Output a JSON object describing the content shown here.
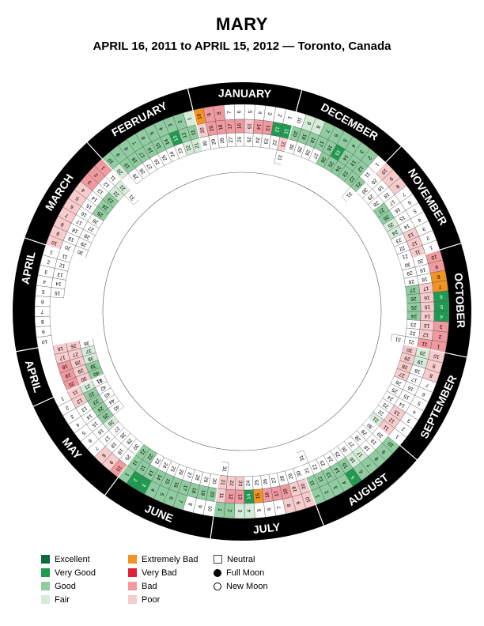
{
  "header": {
    "title": "MARY",
    "subtitle": "APRIL 16, 2011  to  APRIL 15, 2012 — Toronto, Canada"
  },
  "colors": {
    "excellent": "#0b6b3a",
    "very_good": "#1f9a50",
    "good": "#8fcc9f",
    "fair": "#d5ecd9",
    "extremely_bad": "#f39322",
    "very_bad": "#e0213a",
    "bad": "#f09aa0",
    "poor": "#f8cbcd",
    "neutral": "#ffffff",
    "ring": "#000000"
  },
  "legend": {
    "col1": [
      {
        "key": "excellent",
        "label": "Excellent"
      },
      {
        "key": "very_good",
        "label": "Very Good"
      },
      {
        "key": "good",
        "label": "Good"
      },
      {
        "key": "fair",
        "label": "Fair"
      }
    ],
    "col2": [
      {
        "key": "extremely_bad",
        "label": "Extremely Bad"
      },
      {
        "key": "very_bad",
        "label": "Very Bad"
      },
      {
        "key": "bad",
        "label": "Bad"
      },
      {
        "key": "poor",
        "label": "Poor"
      }
    ],
    "col3": [
      {
        "key": "neutral",
        "label": "Neutral"
      },
      {
        "key": "full",
        "label": "Full Moon"
      },
      {
        "key": "new",
        "label": "New Moon"
      }
    ]
  },
  "months": [
    {
      "name": "APRIL",
      "days": 30,
      "start_day": 16,
      "ratings": "PPBBBVVOBBPPPPPNNNNNNFFGGNNNNN"
    },
    {
      "name": "MAY",
      "days": 31,
      "start_day": 1,
      "ratings": "NNNNNNNPPBPPNNNNNNNNFGGGGFNNNNN"
    },
    {
      "name": "JUNE",
      "days": 30,
      "start_day": 1,
      "ratings": "GVVGGGGNNNGGGGGGGGGGGGNNNNNNNN"
    },
    {
      "name": "JULY",
      "days": 31,
      "start_day": 1,
      "ratings": "GGFFNNNPPPPBBVOBBBPPPPPNNNNNNNN"
    },
    {
      "name": "AUGUST",
      "days": 31,
      "start_day": 1,
      "ratings": "GGGGVGGGGGGGGGGFFNNNNNNNNNNNNNN"
    },
    {
      "name": "SEPTEMBER",
      "days": 30,
      "start_day": 1,
      "ratings": "NNNNNNNPPPPPPNNNNNFFFNNNNNPPPP"
    },
    {
      "name": "OCTOBER",
      "days": 31,
      "start_day": 1,
      "ratings": "BBBVVVOOBBBPPPPPPNNNNNNGGGGNNNN"
    },
    {
      "name": "NOVEMBER",
      "days": 30,
      "start_day": 1,
      "ratings": "NNNNNNNPPPPPPNNNNNNNNNNFFGGNNN"
    },
    {
      "name": "DECEMBER",
      "days": 31,
      "start_day": 1,
      "ratings": "NGGGGGGFFNNGGGVGGGGGGGGGGGNNNNN"
    },
    {
      "name": "JANUARY",
      "days": 31,
      "start_day": 1,
      "ratings": "NNNNNNNBBOVVBBPBBBBPPNNNNNNNNNN"
    },
    {
      "name": "FEBRUARY",
      "days": 29,
      "start_day": 1,
      "ratings": "FGGGGGGGGGGGVGGGGGGFFFNNNNNNN"
    },
    {
      "name": "MARCH",
      "days": 31,
      "start_day": 1,
      "ratings": "BBBPPPPPPPNNNNNNNNNNFFGGGNNNNNN"
    },
    {
      "name": "APRIL",
      "days": 15,
      "start_day": 1,
      "ratings": "NNNNNNNNNNNNNNN"
    }
  ],
  "rating_codes": {
    "E": "excellent",
    "V": "very_good",
    "G": "good",
    "F": "fair",
    "O": "extremely_bad",
    "X": "very_bad",
    "B": "bad",
    "P": "poor",
    "N": "neutral"
  }
}
